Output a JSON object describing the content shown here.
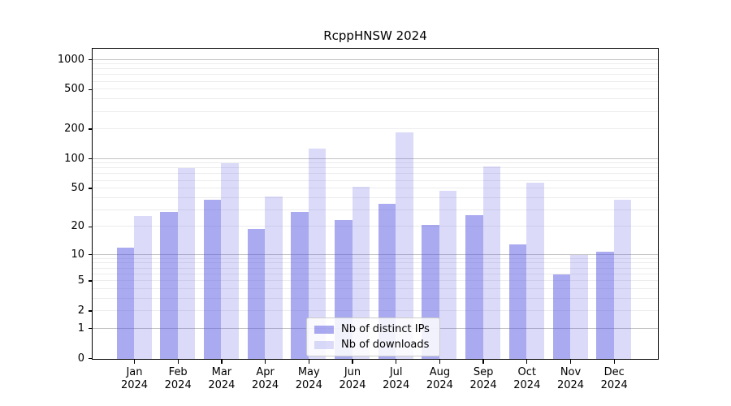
{
  "title": "RcppHNSW 2024",
  "chart_data": {
    "type": "bar",
    "title": "RcppHNSW 2024",
    "categories": [
      "Jan",
      "Feb",
      "Mar",
      "Apr",
      "May",
      "Jun",
      "Jul",
      "Aug",
      "Sep",
      "Oct",
      "Nov",
      "Dec"
    ],
    "category_year": "2024",
    "series": [
      {
        "name": "Nb of distinct IPs",
        "color_hex": "#5555e1",
        "alpha": 0.5,
        "values": [
          12,
          29,
          39,
          19,
          29,
          24,
          35,
          21,
          27,
          13,
          6,
          11
        ]
      },
      {
        "name": "Nb of downloads",
        "color_hex": "#5555e1",
        "alpha": 0.21,
        "values": [
          26,
          81,
          91,
          42,
          128,
          53,
          186,
          48,
          84,
          58,
          10,
          39
        ]
      }
    ],
    "yticks": [
      0,
      1,
      2,
      5,
      10,
      20,
      50,
      100,
      200,
      500,
      1000
    ],
    "scale": "log1p",
    "ylim": [
      0,
      1330
    ],
    "xlabel": "",
    "ylabel": "",
    "grid": true,
    "major_grid_values": [
      1,
      10,
      100,
      1000
    ],
    "legend_position": "inside bottom-center",
    "colors": {
      "major_grid": "#c3c3c3",
      "minor_grid": "#ececec",
      "axis": "#000000",
      "background": "#ffffff"
    }
  }
}
